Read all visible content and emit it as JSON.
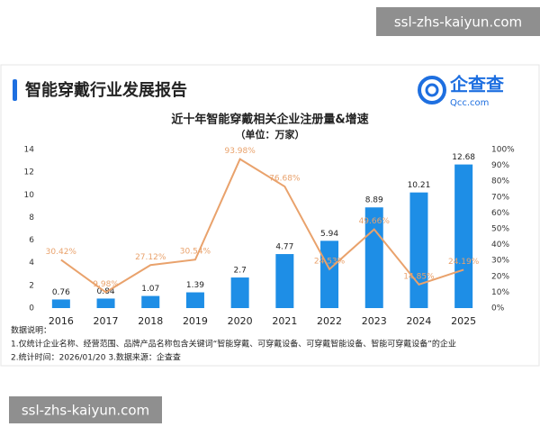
{
  "header": {
    "title": "智能穿戴行业发展报告",
    "logo": "企查查",
    "logo_sub": "Qcc.com"
  },
  "watermarks": [
    "ssl-zhs-kaiyun.com",
    "ssl-zhs-kaiyun.com"
  ],
  "chart_data": {
    "type": "bar",
    "title": "近十年智能穿戴相关企业注册量&增速",
    "subtitle": "（单位：万家）",
    "categories": [
      "2016",
      "2017",
      "2018",
      "2019",
      "2020",
      "2021",
      "2022",
      "2023",
      "2024",
      "2025"
    ],
    "series": [
      {
        "type": "bar",
        "color": "#1e8ee6",
        "values": [
          0.76,
          0.84,
          1.07,
          1.39,
          2.7,
          4.77,
          5.94,
          8.89,
          10.21,
          12.68
        ]
      },
      {
        "type": "line",
        "axis": "y2",
        "color": "#e9a26c",
        "values": [
          30.42,
          9.98,
          27.12,
          30.54,
          93.98,
          76.68,
          24.53,
          49.66,
          14.85,
          24.19
        ],
        "value_labels": [
          "30.42%",
          "9.98%",
          "27.12%",
          "30.54%",
          "93.98%",
          "76.68%",
          "24.53%",
          "49.66%",
          "14.85%",
          "24.19%"
        ]
      }
    ],
    "ylim": [
      0,
      14
    ],
    "yticks": [
      0,
      2,
      4,
      6,
      8,
      10,
      12,
      14
    ],
    "y2lim": [
      0,
      100
    ],
    "y2ticks": [
      {
        "value": 0,
        "label": "0%"
      },
      {
        "value": 10,
        "label": "10%"
      },
      {
        "value": 20,
        "label": "20%"
      },
      {
        "value": 30,
        "label": "30%"
      },
      {
        "value": 40,
        "label": "40%"
      },
      {
        "value": 50,
        "label": "50%"
      },
      {
        "value": 60,
        "label": "60%"
      },
      {
        "value": 70,
        "label": "70%"
      },
      {
        "value": 80,
        "label": "80%"
      },
      {
        "value": 90,
        "label": "90%"
      },
      {
        "value": 100,
        "label": "100%"
      }
    ],
    "grid": false
  },
  "notes": [
    "数据说明：",
    "1.仅统计企业名称、经营范围、品牌产品名称包含关键词“智能穿戴、可穿戴设备、可穿戴智能设备、智能可穿戴设备”的企业",
    "2.统计时间：2026/01/20   3.数据来源：企查查"
  ]
}
